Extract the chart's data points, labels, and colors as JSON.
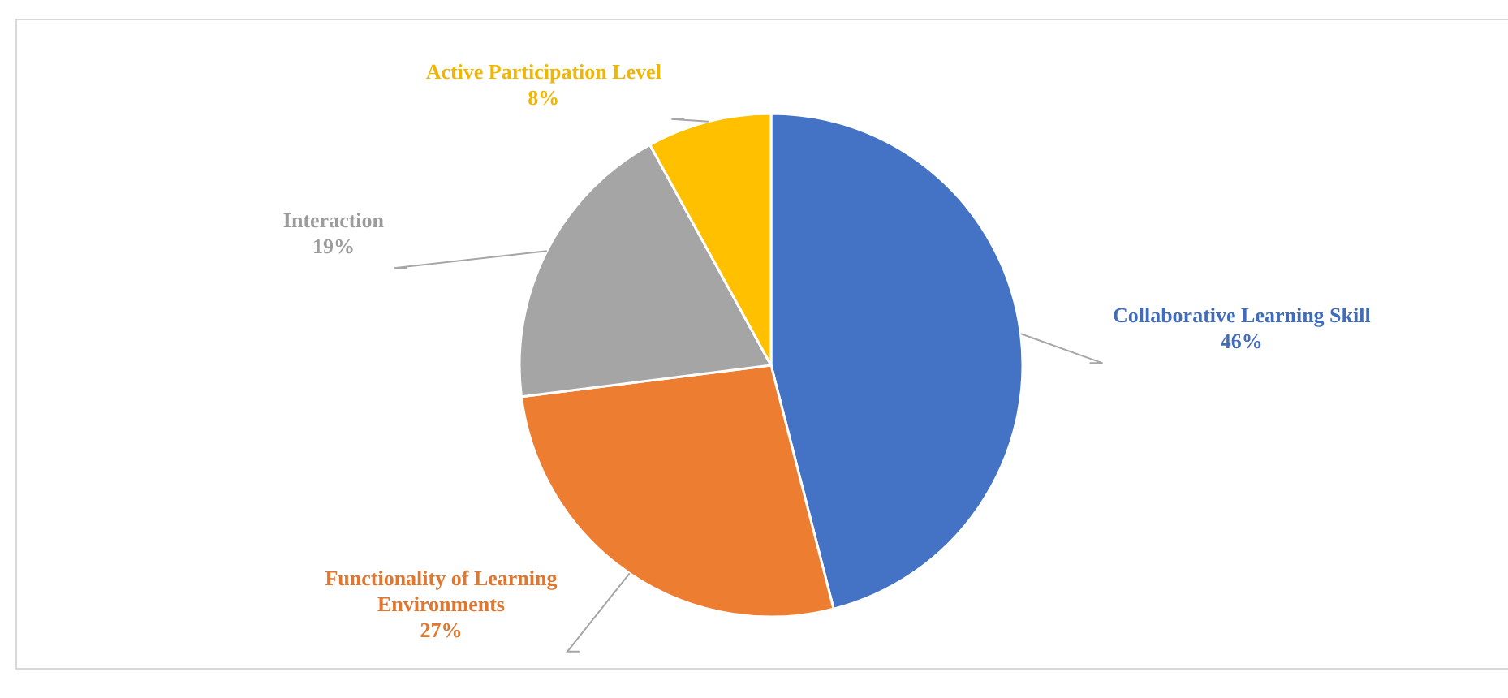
{
  "chart_data": {
    "type": "pie",
    "categories": [
      "Collaborative Learning Skill",
      "Functionality of Learning Environments",
      "Interaction",
      "Active Participation Level"
    ],
    "values": [
      46,
      27,
      19,
      8
    ],
    "colors": [
      "#4472c4",
      "#ed7d31",
      "#a5a5a5",
      "#ffc000"
    ],
    "value_labels": [
      "46%",
      "27%",
      "19%",
      "8%"
    ]
  }
}
